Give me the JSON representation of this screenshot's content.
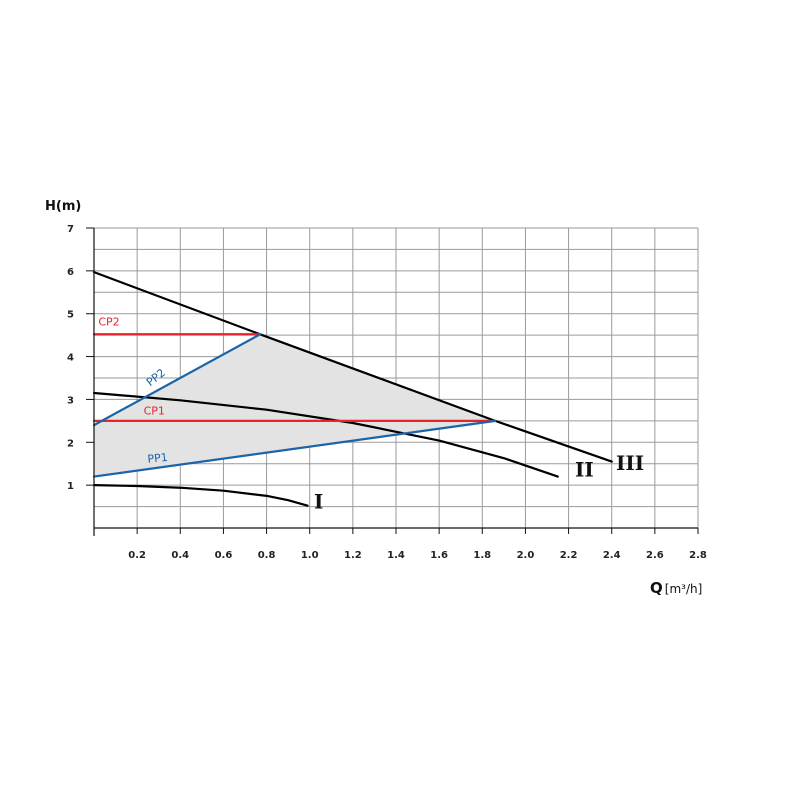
{
  "chart_data": {
    "type": "line",
    "ylabel": "H(m)",
    "xlabel_main": "Q",
    "xlabel_unit": "[m³/h]",
    "xlim": [
      0,
      2.8
    ],
    "ylim": [
      0,
      7
    ],
    "x_ticks": [
      {
        "value": 0.2,
        "label": "0.2"
      },
      {
        "value": 0.4,
        "label": "0.4"
      },
      {
        "value": 0.6,
        "label": "0.6"
      },
      {
        "value": 0.8,
        "label": "0.8"
      },
      {
        "value": 1.0,
        "label": "1.0"
      },
      {
        "value": 1.2,
        "label": "1.2"
      },
      {
        "value": 1.4,
        "label": "1.4"
      },
      {
        "value": 1.6,
        "label": "1.6"
      },
      {
        "value": 1.8,
        "label": "1.8"
      },
      {
        "value": 2.0,
        "label": "2.0"
      },
      {
        "value": 2.2,
        "label": "2.2"
      },
      {
        "value": 2.4,
        "label": "2.4"
      },
      {
        "value": 2.6,
        "label": "2.6"
      },
      {
        "value": 2.8,
        "label": "2.8"
      }
    ],
    "y_ticks": [
      {
        "value": 1,
        "label": "1"
      },
      {
        "value": 2,
        "label": "2"
      },
      {
        "value": 3,
        "label": "3"
      },
      {
        "value": 4,
        "label": "4"
      },
      {
        "value": 5,
        "label": "5"
      },
      {
        "value": 6,
        "label": "6"
      },
      {
        "value": 7,
        "label": "7"
      }
    ],
    "grid": true,
    "shaded_region": {
      "color": "#e3e3e3",
      "points": [
        [
          0,
          1.2
        ],
        [
          0,
          2.4
        ],
        [
          0.77,
          4.52
        ],
        [
          1.86,
          2.5
        ]
      ]
    },
    "series": [
      {
        "name": "I",
        "color": "#000000",
        "label_at": [
          1.02,
          0.45
        ],
        "points": [
          [
            0,
            1.0
          ],
          [
            0.2,
            0.98
          ],
          [
            0.4,
            0.94
          ],
          [
            0.6,
            0.87
          ],
          [
            0.8,
            0.75
          ],
          [
            0.9,
            0.65
          ],
          [
            0.99,
            0.52
          ]
        ]
      },
      {
        "name": "II",
        "color": "#000000",
        "label_at": [
          2.23,
          1.2
        ],
        "points": [
          [
            0,
            3.15
          ],
          [
            0.4,
            2.98
          ],
          [
            0.8,
            2.76
          ],
          [
            1.2,
            2.45
          ],
          [
            1.6,
            2.04
          ],
          [
            1.9,
            1.63
          ],
          [
            2.15,
            1.2
          ]
        ]
      },
      {
        "name": "III",
        "color": "#000000",
        "label_at": [
          2.42,
          1.35
        ],
        "points": [
          [
            0,
            5.97
          ],
          [
            0.77,
            4.52
          ],
          [
            1.86,
            2.5
          ],
          [
            2.4,
            1.55
          ]
        ]
      },
      {
        "name": "CP2",
        "color": "#e8232a",
        "label_at": [
          0.02,
          4.72
        ],
        "points": [
          [
            0,
            4.52
          ],
          [
            0.77,
            4.52
          ]
        ]
      },
      {
        "name": "CP1",
        "color": "#e8232a",
        "label_at": [
          0.23,
          2.65
        ],
        "points": [
          [
            0,
            2.5
          ],
          [
            1.86,
            2.5
          ]
        ]
      },
      {
        "name": "PP2",
        "color": "#1a64a8",
        "label_at": [
          0.26,
          3.3
        ],
        "label_angle": -38,
        "points": [
          [
            0,
            2.4
          ],
          [
            0.77,
            4.52
          ]
        ]
      },
      {
        "name": "PP1",
        "color": "#1a64a8",
        "label_at": [
          0.25,
          1.52
        ],
        "label_angle": -6,
        "points": [
          [
            0,
            1.2
          ],
          [
            1.86,
            2.5
          ]
        ]
      }
    ]
  }
}
